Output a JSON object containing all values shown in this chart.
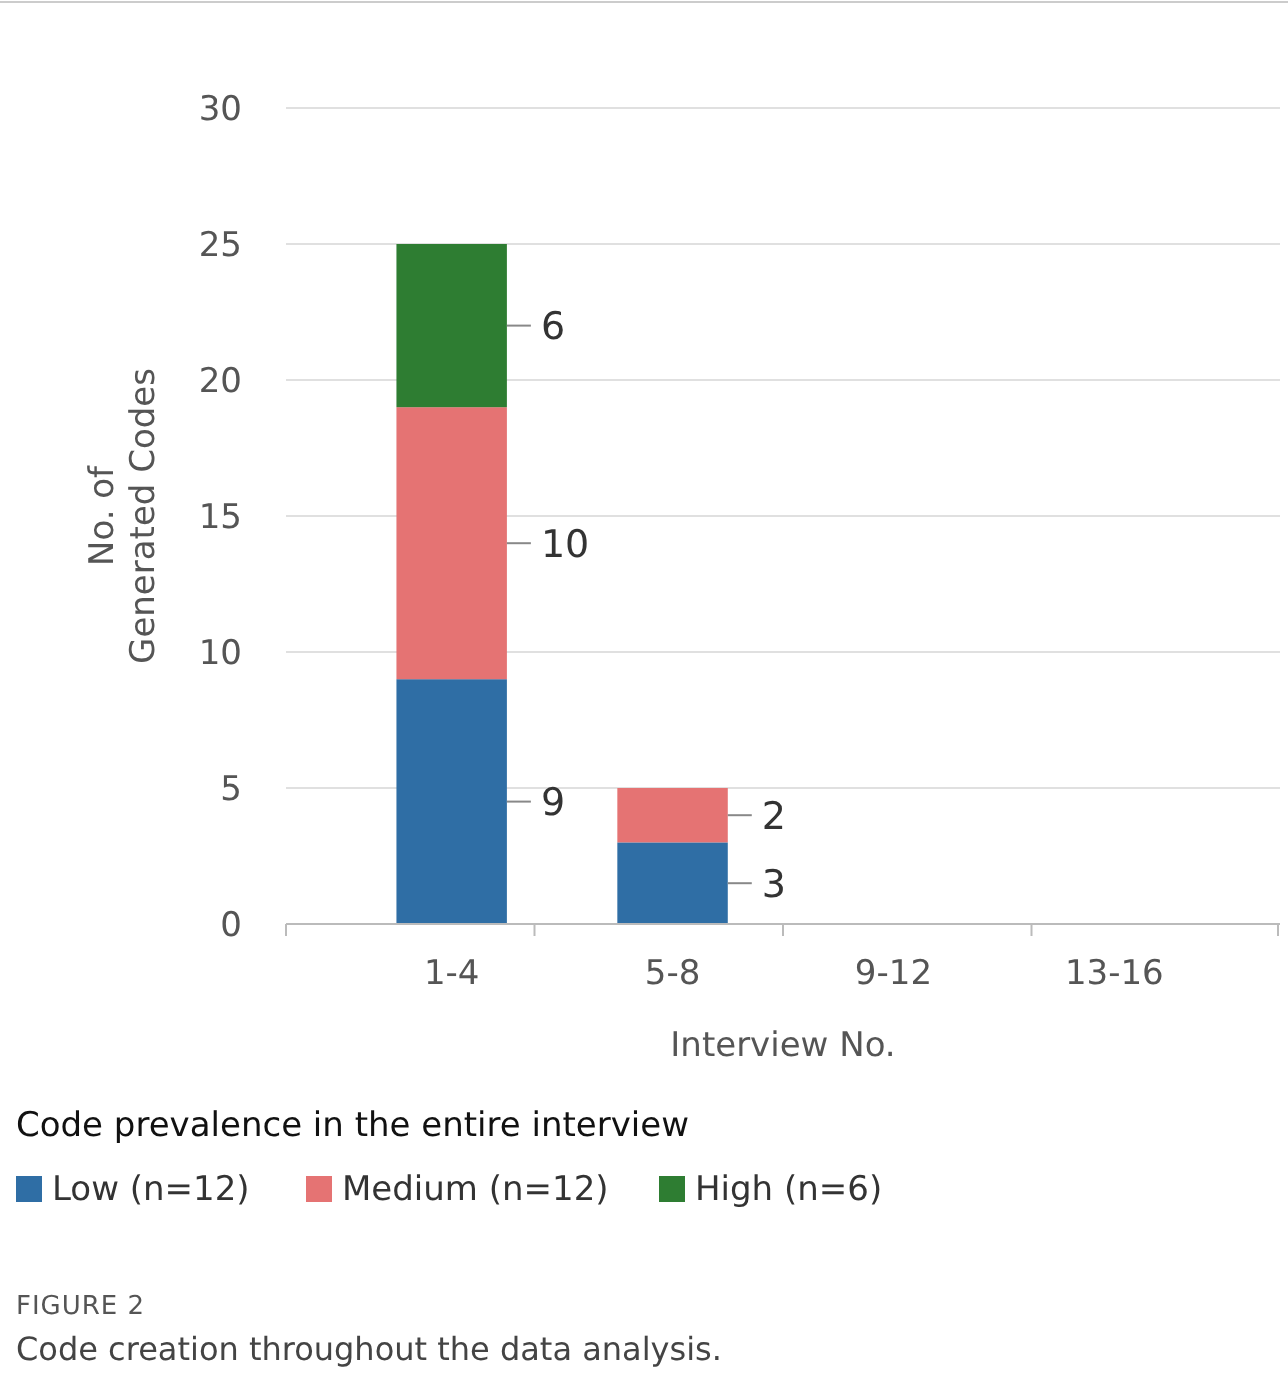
{
  "chart_data": {
    "type": "bar",
    "stacked": true,
    "xlabel": "Interview No.",
    "ylabel": "No. of Generated Codes",
    "legend_title": "Code prevalence in the entire interview",
    "legend": "bottom",
    "grid": "y",
    "categories": [
      "1-4",
      "5-8",
      "9-12",
      "13-16"
    ],
    "series": [
      {
        "name": "Low (n=12)",
        "color": "#2f6ea5",
        "values": [
          9,
          3,
          0,
          0
        ],
        "value_labels": [
          "9",
          "3",
          null,
          null
        ]
      },
      {
        "name": "Medium (n=12)",
        "color": "#e57373",
        "values": [
          10,
          2,
          0,
          0
        ],
        "value_labels": [
          "10",
          "2",
          null,
          null
        ]
      },
      {
        "name": "High (n=6)",
        "color": "#2e7d32",
        "values": [
          6,
          0,
          0,
          0
        ],
        "value_labels": [
          "6",
          null,
          null,
          null
        ]
      }
    ],
    "ylim": [
      0,
      30
    ],
    "yticks": [
      0,
      5,
      10,
      15,
      20,
      25,
      30
    ],
    "annotations": [
      "FIGURE 2",
      "Code creation throughout the data analysis."
    ]
  }
}
